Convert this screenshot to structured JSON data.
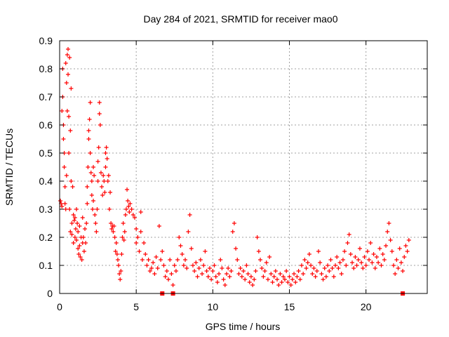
{
  "chart_data": {
    "type": "scatter",
    "title": "Day 284 of 2021, SRMTID for receiver mao0",
    "xlabel": "GPS time / hours",
    "ylabel": "SRMTID / TECUs",
    "xlim": [
      0,
      24
    ],
    "ylim": [
      0,
      0.9
    ],
    "xticks": [
      0,
      5,
      10,
      15,
      20
    ],
    "yticks": [
      0,
      0.1,
      0.2,
      0.3,
      0.4,
      0.5,
      0.6,
      0.7,
      0.8,
      0.9
    ],
    "xtick_labels": [
      "0",
      "5",
      "10",
      "15",
      "20"
    ],
    "ytick_labels": [
      "0",
      "0.1",
      "0.2",
      "0.3",
      "0.4",
      "0.5",
      "0.6",
      "0.7",
      "0.8",
      "0.9"
    ],
    "grid": true,
    "marker": "+",
    "color": "#ff0000",
    "series": [
      {
        "name": "SRMTID",
        "points": [
          [
            0.05,
            0.33
          ],
          [
            0.1,
            0.32
          ],
          [
            0.15,
            0.65
          ],
          [
            0.15,
            0.31
          ],
          [
            0.2,
            0.8
          ],
          [
            0.2,
            0.7
          ],
          [
            0.25,
            0.55
          ],
          [
            0.25,
            0.6
          ],
          [
            0.3,
            0.5
          ],
          [
            0.3,
            0.45
          ],
          [
            0.35,
            0.38
          ],
          [
            0.35,
            0.32
          ],
          [
            0.4,
            0.82
          ],
          [
            0.4,
            0.3
          ],
          [
            0.45,
            0.75
          ],
          [
            0.45,
            0.42
          ],
          [
            0.5,
            0.85
          ],
          [
            0.5,
            0.65
          ],
          [
            0.55,
            0.87
          ],
          [
            0.55,
            0.78
          ],
          [
            0.6,
            0.63
          ],
          [
            0.6,
            0.5
          ],
          [
            0.65,
            0.84
          ],
          [
            0.65,
            0.3
          ],
          [
            0.7,
            0.58
          ],
          [
            0.7,
            0.22
          ],
          [
            0.75,
            0.73
          ],
          [
            0.75,
            0.4
          ],
          [
            0.8,
            0.25
          ],
          [
            0.8,
            0.21
          ],
          [
            0.85,
            0.38
          ],
          [
            0.9,
            0.28
          ],
          [
            0.9,
            0.18
          ],
          [
            0.95,
            0.26
          ],
          [
            1.0,
            0.2
          ],
          [
            1.0,
            0.27
          ],
          [
            1.05,
            0.23
          ],
          [
            1.1,
            0.3
          ],
          [
            1.1,
            0.19
          ],
          [
            1.15,
            0.25
          ],
          [
            1.2,
            0.16
          ],
          [
            1.2,
            0.22
          ],
          [
            1.25,
            0.14
          ],
          [
            1.3,
            0.17
          ],
          [
            1.3,
            0.24
          ],
          [
            1.35,
            0.13
          ],
          [
            1.4,
            0.2
          ],
          [
            1.45,
            0.12
          ],
          [
            1.5,
            0.18
          ],
          [
            1.5,
            0.27
          ],
          [
            1.55,
            0.2
          ],
          [
            1.6,
            0.15
          ],
          [
            1.65,
            0.23
          ],
          [
            1.7,
            0.18
          ],
          [
            1.75,
            0.25
          ],
          [
            1.8,
            0.32
          ],
          [
            1.8,
            0.38
          ],
          [
            1.85,
            0.45
          ],
          [
            1.9,
            0.55
          ],
          [
            1.9,
            0.58
          ],
          [
            1.95,
            0.62
          ],
          [
            2.0,
            0.68
          ],
          [
            2.0,
            0.5
          ],
          [
            2.05,
            0.43
          ],
          [
            2.1,
            0.4
          ],
          [
            2.1,
            0.35
          ],
          [
            2.15,
            0.3
          ],
          [
            2.2,
            0.33
          ],
          [
            2.2,
            0.45
          ],
          [
            2.25,
            0.42
          ],
          [
            2.3,
            0.28
          ],
          [
            2.35,
            0.25
          ],
          [
            2.4,
            0.22
          ],
          [
            2.45,
            0.3
          ],
          [
            2.5,
            0.4
          ],
          [
            2.5,
            0.47
          ],
          [
            2.55,
            0.52
          ],
          [
            2.6,
            0.64
          ],
          [
            2.6,
            0.68
          ],
          [
            2.65,
            0.6
          ],
          [
            2.7,
            0.43
          ],
          [
            2.75,
            0.38
          ],
          [
            2.8,
            0.35
          ],
          [
            2.85,
            0.42
          ],
          [
            2.9,
            0.4
          ],
          [
            2.95,
            0.36
          ],
          [
            3.0,
            0.45
          ],
          [
            3.0,
            0.5
          ],
          [
            3.05,
            0.52
          ],
          [
            3.1,
            0.48
          ],
          [
            3.15,
            0.4
          ],
          [
            3.2,
            0.42
          ],
          [
            3.25,
            0.3
          ],
          [
            3.3,
            0.36
          ],
          [
            3.35,
            0.25
          ],
          [
            3.4,
            0.23
          ],
          [
            3.45,
            0.24
          ],
          [
            3.5,
            0.22
          ],
          [
            3.55,
            0.24
          ],
          [
            3.6,
            0.2
          ],
          [
            3.65,
            0.15
          ],
          [
            3.7,
            0.18
          ],
          [
            3.75,
            0.14
          ],
          [
            3.8,
            0.12
          ],
          [
            3.85,
            0.1
          ],
          [
            3.9,
            0.07
          ],
          [
            3.95,
            0.05
          ],
          [
            4.0,
            0.08
          ],
          [
            4.05,
            0.14
          ],
          [
            4.1,
            0.2
          ],
          [
            4.15,
            0.25
          ],
          [
            4.2,
            0.19
          ],
          [
            4.25,
            0.22
          ],
          [
            4.3,
            0.28
          ],
          [
            4.35,
            0.3
          ],
          [
            4.4,
            0.37
          ],
          [
            4.45,
            0.33
          ],
          [
            4.5,
            0.31
          ],
          [
            4.55,
            0.29
          ],
          [
            4.6,
            0.32
          ],
          [
            4.7,
            0.3
          ],
          [
            4.8,
            0.28
          ],
          [
            4.9,
            0.27
          ],
          [
            5.0,
            0.23
          ],
          [
            5.0,
            0.18
          ],
          [
            5.1,
            0.2
          ],
          [
            5.2,
            0.15
          ],
          [
            5.3,
            0.29
          ],
          [
            5.3,
            0.22
          ],
          [
            5.4,
            0.12
          ],
          [
            5.5,
            0.18
          ],
          [
            5.6,
            0.14
          ],
          [
            5.7,
            0.1
          ],
          [
            5.8,
            0.12
          ],
          [
            5.9,
            0.08
          ],
          [
            6.0,
            0.09
          ],
          [
            6.1,
            0.11
          ],
          [
            6.2,
            0.07
          ],
          [
            6.3,
            0.13
          ],
          [
            6.4,
            0.09
          ],
          [
            6.5,
            0.24
          ],
          [
            6.6,
            0.12
          ],
          [
            6.7,
            0.15
          ],
          [
            6.8,
            0.1
          ],
          [
            6.9,
            0.06
          ],
          [
            7.0,
            0.08
          ],
          [
            7.1,
            0.05
          ],
          [
            7.2,
            0.12
          ],
          [
            7.3,
            0.07
          ],
          [
            7.4,
            0.03
          ],
          [
            7.5,
            0.1
          ],
          [
            7.6,
            0.08
          ],
          [
            7.7,
            0.12
          ],
          [
            7.8,
            0.2
          ],
          [
            7.9,
            0.17
          ],
          [
            8.0,
            0.14
          ],
          [
            8.1,
            0.1
          ],
          [
            8.2,
            0.12
          ],
          [
            8.3,
            0.09
          ],
          [
            8.4,
            0.22
          ],
          [
            8.5,
            0.28
          ],
          [
            8.6,
            0.16
          ],
          [
            8.7,
            0.1
          ],
          [
            8.8,
            0.08
          ],
          [
            8.9,
            0.11
          ],
          [
            9.0,
            0.06
          ],
          [
            9.1,
            0.09
          ],
          [
            9.2,
            0.12
          ],
          [
            9.3,
            0.07
          ],
          [
            9.4,
            0.1
          ],
          [
            9.5,
            0.15
          ],
          [
            9.6,
            0.08
          ],
          [
            9.7,
            0.06
          ],
          [
            9.8,
            0.09
          ],
          [
            9.9,
            0.05
          ],
          [
            10.0,
            0.08
          ],
          [
            10.1,
            0.1
          ],
          [
            10.2,
            0.06
          ],
          [
            10.3,
            0.04
          ],
          [
            10.4,
            0.07
          ],
          [
            10.5,
            0.12
          ],
          [
            10.6,
            0.09
          ],
          [
            10.7,
            0.05
          ],
          [
            10.8,
            0.03
          ],
          [
            10.9,
            0.07
          ],
          [
            11.0,
            0.09
          ],
          [
            11.1,
            0.06
          ],
          [
            11.2,
            0.08
          ],
          [
            11.3,
            0.22
          ],
          [
            11.4,
            0.25
          ],
          [
            11.5,
            0.16
          ],
          [
            11.6,
            0.12
          ],
          [
            11.7,
            0.07
          ],
          [
            11.8,
            0.09
          ],
          [
            11.9,
            0.06
          ],
          [
            12.0,
            0.08
          ],
          [
            12.1,
            0.05
          ],
          [
            12.2,
            0.1
          ],
          [
            12.3,
            0.07
          ],
          [
            12.4,
            0.04
          ],
          [
            12.5,
            0.06
          ],
          [
            12.6,
            0.03
          ],
          [
            12.7,
            0.05
          ],
          [
            12.8,
            0.08
          ],
          [
            12.9,
            0.2
          ],
          [
            13.0,
            0.15
          ],
          [
            13.1,
            0.12
          ],
          [
            13.2,
            0.09
          ],
          [
            13.3,
            0.06
          ],
          [
            13.4,
            0.08
          ],
          [
            13.5,
            0.11
          ],
          [
            13.6,
            0.05
          ],
          [
            13.7,
            0.13
          ],
          [
            13.8,
            0.07
          ],
          [
            13.9,
            0.04
          ],
          [
            14.0,
            0.06
          ],
          [
            14.1,
            0.08
          ],
          [
            14.2,
            0.05
          ],
          [
            14.3,
            0.03
          ],
          [
            14.4,
            0.07
          ],
          [
            14.5,
            0.04
          ],
          [
            14.6,
            0.06
          ],
          [
            14.7,
            0.05
          ],
          [
            14.8,
            0.08
          ],
          [
            14.9,
            0.04
          ],
          [
            15.0,
            0.06
          ],
          [
            15.1,
            0.03
          ],
          [
            15.2,
            0.05
          ],
          [
            15.3,
            0.07
          ],
          [
            15.4,
            0.04
          ],
          [
            15.5,
            0.06
          ],
          [
            15.6,
            0.08
          ],
          [
            15.7,
            0.05
          ],
          [
            15.8,
            0.1
          ],
          [
            15.9,
            0.07
          ],
          [
            16.0,
            0.12
          ],
          [
            16.1,
            0.09
          ],
          [
            16.2,
            0.11
          ],
          [
            16.3,
            0.14
          ],
          [
            16.4,
            0.1
          ],
          [
            16.5,
            0.07
          ],
          [
            16.6,
            0.09
          ],
          [
            16.7,
            0.06
          ],
          [
            16.8,
            0.08
          ],
          [
            16.9,
            0.15
          ],
          [
            17.0,
            0.11
          ],
          [
            17.1,
            0.07
          ],
          [
            17.2,
            0.05
          ],
          [
            17.3,
            0.09
          ],
          [
            17.4,
            0.06
          ],
          [
            17.5,
            0.1
          ],
          [
            17.6,
            0.08
          ],
          [
            17.7,
            0.12
          ],
          [
            17.8,
            0.09
          ],
          [
            17.9,
            0.06
          ],
          [
            18.0,
            0.1
          ],
          [
            18.1,
            0.13
          ],
          [
            18.2,
            0.09
          ],
          [
            18.3,
            0.11
          ],
          [
            18.4,
            0.07
          ],
          [
            18.5,
            0.12
          ],
          [
            18.6,
            0.15
          ],
          [
            18.7,
            0.1
          ],
          [
            18.8,
            0.18
          ],
          [
            18.9,
            0.21
          ],
          [
            19.0,
            0.14
          ],
          [
            19.1,
            0.11
          ],
          [
            19.2,
            0.09
          ],
          [
            19.3,
            0.13
          ],
          [
            19.4,
            0.1
          ],
          [
            19.5,
            0.12
          ],
          [
            19.6,
            0.16
          ],
          [
            19.7,
            0.11
          ],
          [
            19.8,
            0.09
          ],
          [
            19.9,
            0.13
          ],
          [
            20.0,
            0.1
          ],
          [
            20.1,
            0.15
          ],
          [
            20.2,
            0.12
          ],
          [
            20.3,
            0.18
          ],
          [
            20.4,
            0.11
          ],
          [
            20.5,
            0.14
          ],
          [
            20.6,
            0.09
          ],
          [
            20.7,
            0.13
          ],
          [
            20.8,
            0.11
          ],
          [
            20.9,
            0.16
          ],
          [
            21.0,
            0.1
          ],
          [
            21.1,
            0.14
          ],
          [
            21.2,
            0.12
          ],
          [
            21.3,
            0.17
          ],
          [
            21.4,
            0.22
          ],
          [
            21.5,
            0.25
          ],
          [
            21.6,
            0.19
          ],
          [
            21.7,
            0.15
          ],
          [
            21.8,
            0.1
          ],
          [
            21.9,
            0.07
          ],
          [
            22.0,
            0.12
          ],
          [
            22.1,
            0.09
          ],
          [
            22.2,
            0.16
          ],
          [
            22.3,
            0.11
          ],
          [
            22.4,
            0.08
          ],
          [
            22.5,
            0.13
          ],
          [
            22.6,
            0.17
          ],
          [
            22.7,
            0.15
          ],
          [
            22.8,
            0.19
          ]
        ]
      }
    ],
    "zero_markers": [
      6.7,
      7.4,
      22.4
    ]
  }
}
